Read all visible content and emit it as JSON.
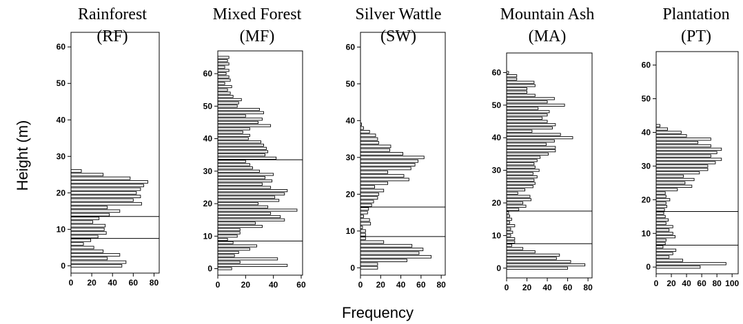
{
  "xlabel": "Frequency",
  "ylabel": "Height (m)",
  "chart_data": [
    {
      "type": "bar",
      "orientation": "horizontal",
      "title": "Rainforest",
      "subtitle": "(RF)",
      "xlabel": "Frequency",
      "ylabel": "Height (m)",
      "xlim": [
        0,
        85
      ],
      "ylim": [
        -2,
        64
      ],
      "xticks": [
        0,
        20,
        40,
        60,
        80
      ],
      "yticks": [
        0,
        10,
        20,
        30,
        40,
        50,
        60
      ],
      "reference_lines_y": [
        13.5,
        7.5
      ],
      "heights": [
        0,
        1,
        2,
        3,
        4,
        5,
        6,
        7,
        8,
        9,
        10,
        11,
        12,
        13,
        14,
        15,
        16,
        17,
        18,
        19,
        20,
        21,
        22,
        23,
        24,
        25,
        26,
        27,
        28
      ],
      "values": [
        49,
        53,
        35,
        47,
        31,
        22,
        12,
        19,
        26,
        34,
        32,
        33,
        21,
        27,
        37,
        47,
        35,
        68,
        60,
        67,
        63,
        67,
        70,
        74,
        57,
        31,
        10,
        0,
        0
      ]
    },
    {
      "type": "bar",
      "orientation": "horizontal",
      "title": "Mixed Forest",
      "subtitle": "(MF)",
      "xlabel": "Frequency",
      "ylabel": "Height (m)",
      "xlim": [
        0,
        61
      ],
      "ylim": [
        -2,
        67
      ],
      "xticks": [
        0,
        20,
        40,
        60
      ],
      "yticks": [
        0,
        10,
        20,
        30,
        40,
        50,
        60
      ],
      "reference_lines_y": [
        33.5,
        8.5
      ],
      "heights": [
        0,
        1,
        2,
        3,
        4,
        5,
        6,
        7,
        8,
        9,
        10,
        11,
        12,
        13,
        14,
        15,
        16,
        17,
        18,
        19,
        20,
        21,
        22,
        23,
        24,
        25,
        26,
        27,
        28,
        29,
        30,
        31,
        32,
        33,
        34,
        35,
        36,
        37,
        38,
        39,
        40,
        41,
        42,
        43,
        44,
        45,
        46,
        47,
        48,
        49,
        50,
        51,
        52,
        53,
        54,
        55,
        56,
        57,
        58,
        59,
        60,
        61,
        62,
        63,
        64,
        65
      ],
      "values": [
        10,
        50,
        16,
        43,
        12,
        15,
        23,
        28,
        11,
        7,
        14,
        16,
        16,
        32,
        27,
        48,
        45,
        38,
        57,
        36,
        29,
        44,
        41,
        48,
        50,
        38,
        32,
        39,
        34,
        40,
        30,
        25,
        23,
        20,
        42,
        34,
        36,
        35,
        33,
        31,
        22,
        23,
        18,
        23,
        38,
        29,
        32,
        20,
        33,
        30,
        14,
        15,
        17,
        11,
        9,
        7,
        10,
        5,
        9,
        8,
        6,
        8,
        5,
        8,
        7,
        8
      ]
    },
    {
      "type": "bar",
      "orientation": "horizontal",
      "title": "Silver Wattle",
      "subtitle": "(SW)",
      "xlabel": "Frequency",
      "ylabel": "Height (m)",
      "xlim": [
        0,
        84
      ],
      "ylim": [
        -2,
        64
      ],
      "xticks": [
        0,
        20,
        40,
        60,
        80
      ],
      "yticks": [
        0,
        10,
        20,
        30,
        40,
        50,
        60
      ],
      "reference_lines_y": [
        16.5,
        8.5
      ],
      "heights": [
        0,
        1,
        2,
        3,
        4,
        5,
        6,
        7,
        8,
        9,
        10,
        11,
        12,
        13,
        14,
        15,
        16,
        17,
        18,
        19,
        20,
        21,
        22,
        23,
        24,
        25,
        26,
        27,
        28,
        29,
        30,
        31,
        32,
        33,
        34,
        35,
        36,
        37,
        38,
        39,
        40,
        41,
        42
      ],
      "values": [
        17,
        17,
        46,
        70,
        58,
        62,
        51,
        23,
        5,
        5,
        5,
        2,
        10,
        9,
        3,
        7,
        8,
        11,
        13,
        17,
        18,
        23,
        14,
        27,
        48,
        43,
        27,
        50,
        54,
        57,
        63,
        42,
        29,
        30,
        18,
        17,
        15,
        9,
        3,
        1,
        0,
        0,
        0
      ]
    },
    {
      "type": "bar",
      "orientation": "horizontal",
      "title": "Mountain Ash",
      "subtitle": "(MA)",
      "xlabel": "Frequency",
      "ylabel": "Height (m)",
      "xlim": [
        0,
        84
      ],
      "ylim": [
        -3,
        66
      ],
      "xticks": [
        0,
        20,
        40,
        60,
        80
      ],
      "yticks": [
        0,
        10,
        20,
        30,
        40,
        50,
        60
      ],
      "reference_lines_y": [
        17.5,
        7.5
      ],
      "heights": [
        0,
        1,
        2,
        3,
        4,
        5,
        6,
        7,
        8,
        9,
        10,
        11,
        12,
        13,
        14,
        15,
        16,
        17,
        18,
        19,
        20,
        21,
        22,
        23,
        24,
        25,
        26,
        27,
        28,
        29,
        30,
        31,
        32,
        33,
        34,
        35,
        36,
        37,
        38,
        39,
        40,
        41,
        42,
        43,
        44,
        45,
        46,
        47,
        48,
        49,
        50,
        51,
        52,
        53,
        54,
        55,
        56,
        57,
        58,
        59,
        60,
        61,
        62,
        63,
        64,
        65,
        66
      ],
      "values": [
        60,
        77,
        63,
        49,
        52,
        28,
        16,
        5,
        8,
        8,
        4,
        6,
        4,
        8,
        3,
        5,
        3,
        2,
        12,
        19,
        16,
        24,
        23,
        11,
        18,
        26,
        28,
        27,
        30,
        26,
        32,
        28,
        27,
        30,
        33,
        41,
        48,
        48,
        39,
        47,
        65,
        53,
        25,
        45,
        48,
        40,
        35,
        40,
        42,
        31,
        57,
        40,
        47,
        28,
        20,
        20,
        28,
        27,
        10,
        10,
        2,
        0,
        0,
        0,
        0,
        0,
        0
      ]
    },
    {
      "type": "bar",
      "orientation": "horizontal",
      "title": "Plantation",
      "subtitle": "(PT)",
      "xlabel": "Frequency",
      "ylabel": "Height (m)",
      "xlim": [
        0,
        108
      ],
      "ylim": [
        -2,
        64
      ],
      "xticks": [
        0,
        20,
        40,
        60,
        80,
        100
      ],
      "yticks": [
        0,
        10,
        20,
        30,
        40,
        50,
        60
      ],
      "reference_lines_y": [
        16.5,
        6.5
      ],
      "heights": [
        0,
        1,
        2,
        3,
        4,
        5,
        6,
        7,
        8,
        9,
        10,
        11,
        12,
        13,
        14,
        15,
        16,
        17,
        18,
        19,
        20,
        21,
        22,
        23,
        24,
        25,
        26,
        27,
        28,
        29,
        30,
        31,
        32,
        33,
        34,
        35,
        36,
        37,
        38,
        39,
        40,
        41,
        42
      ],
      "values": [
        58,
        92,
        35,
        17,
        22,
        26,
        9,
        12,
        13,
        25,
        22,
        17,
        22,
        13,
        16,
        12,
        10,
        11,
        14,
        13,
        18,
        13,
        12,
        28,
        47,
        38,
        50,
        36,
        57,
        68,
        68,
        78,
        86,
        72,
        80,
        86,
        72,
        55,
        72,
        40,
        33,
        15,
        5
      ]
    }
  ]
}
